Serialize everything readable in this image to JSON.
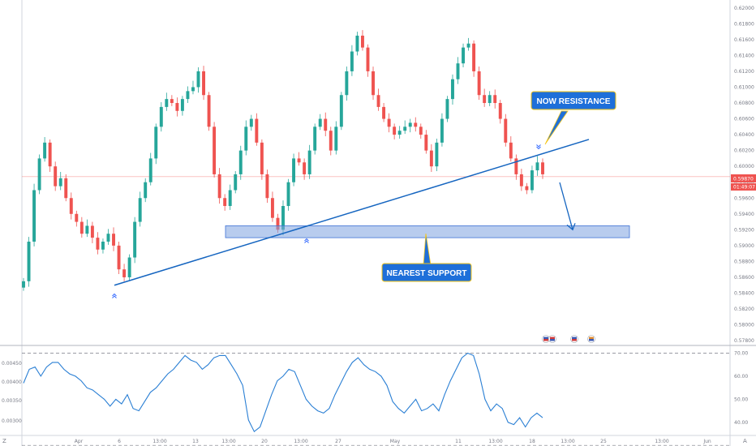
{
  "chart_data": [
    {
      "type": "candlestick",
      "title": "",
      "price_axis": {
        "ticks": [
          "0.62000",
          "0.61800",
          "0.61600",
          "0.61400",
          "0.61200",
          "0.61000",
          "0.60800",
          "0.60600",
          "0.60400",
          "0.60200",
          "0.60000",
          "0.59800",
          "0.59600",
          "0.59400",
          "0.59200",
          "0.59000",
          "0.58800",
          "0.58600",
          "0.58400",
          "0.58200",
          "0.58000",
          "0.57800"
        ],
        "range": [
          0.5775,
          0.621
        ]
      },
      "time_axis": {
        "labels": [
          "Apr",
          "6",
          "13:00",
          "13",
          "13:00",
          "20",
          "13:00",
          "27",
          "May",
          "11",
          "13:00",
          "18",
          "13:00",
          "25",
          "13:00",
          "Jun"
        ]
      },
      "price_series": [
        0.5855,
        0.5905,
        0.597,
        0.601,
        0.603,
        0.6,
        0.5975,
        0.5985,
        0.596,
        0.594,
        0.593,
        0.5915,
        0.5925,
        0.591,
        0.5895,
        0.5905,
        0.5915,
        0.59,
        0.587,
        0.586,
        0.5885,
        0.593,
        0.596,
        0.598,
        0.601,
        0.605,
        0.6075,
        0.6085,
        0.608,
        0.607,
        0.6085,
        0.6095,
        0.61,
        0.612,
        0.609,
        0.605,
        0.599,
        0.596,
        0.595,
        0.597,
        0.599,
        0.602,
        0.605,
        0.606,
        0.603,
        0.599,
        0.596,
        0.5935,
        0.592,
        0.595,
        0.598,
        0.601,
        0.6005,
        0.599,
        0.602,
        0.605,
        0.606,
        0.6045,
        0.602,
        0.605,
        0.609,
        0.612,
        0.6145,
        0.6165,
        0.615,
        0.612,
        0.609,
        0.6075,
        0.606,
        0.605,
        0.604,
        0.6045,
        0.605,
        0.6055,
        0.605,
        0.604,
        0.602,
        0.6,
        0.603,
        0.606,
        0.6085,
        0.611,
        0.613,
        0.615,
        0.6155,
        0.612,
        0.609,
        0.608,
        0.609,
        0.608,
        0.606,
        0.603,
        0.601,
        0.599,
        0.5975,
        0.597,
        0.5995,
        0.6005,
        0.599
      ],
      "current_price": "0.59870",
      "countdown": "01:49:07",
      "annotations": {
        "resistance_label": "NOW RESISTANCE",
        "support_label": "NEAREST SUPPORT"
      },
      "trendline": {
        "from": [
          "Apr 6",
          0.585
        ],
        "to": [
          "May 20",
          0.6034
        ]
      },
      "support_zone": {
        "from": "Apr 13",
        "to": "May 22",
        "price_range": [
          0.591,
          0.5925
        ]
      },
      "projection_arrow": {
        "target_price": 0.592
      },
      "colors": {
        "up": "#26a69a",
        "down": "#ef5350",
        "line": "#1565c0",
        "zone": "#7ea3e0",
        "callout": "#1e6fd9"
      }
    },
    {
      "type": "line",
      "title": "",
      "left_axis_ticks": [
        "0.00450",
        "0.00400",
        "0.00350",
        "0.00300"
      ],
      "right_axis_ticks": [
        "70.00",
        "60.00",
        "50.00",
        "40.00"
      ],
      "ylim": [
        35,
        73
      ],
      "reference_levels": [
        70,
        30
      ],
      "series": [
        {
          "values": [
            57,
            63,
            64,
            60,
            64,
            66,
            66,
            63,
            61,
            60,
            58,
            55,
            54,
            52,
            50,
            47,
            50,
            48,
            52,
            46,
            45,
            49,
            53,
            55,
            58,
            61,
            63,
            66,
            69,
            67,
            66,
            63,
            65,
            68,
            69,
            69,
            65,
            61,
            56,
            41,
            36,
            38,
            45,
            52,
            58,
            60,
            63,
            62,
            56,
            50,
            47,
            45,
            44,
            46,
            52,
            57,
            62,
            66,
            68,
            65,
            63,
            62,
            60,
            56,
            49,
            46,
            44,
            47,
            50,
            45,
            46,
            48,
            45,
            52,
            58,
            63,
            68,
            70,
            69,
            61,
            50,
            45,
            48,
            46,
            40,
            39,
            42,
            38,
            42,
            44,
            42
          ]
        }
      ],
      "color": "#2a7fd4"
    }
  ],
  "corner_labels": {
    "bottom_left": "Z",
    "bottom_right": "A"
  }
}
